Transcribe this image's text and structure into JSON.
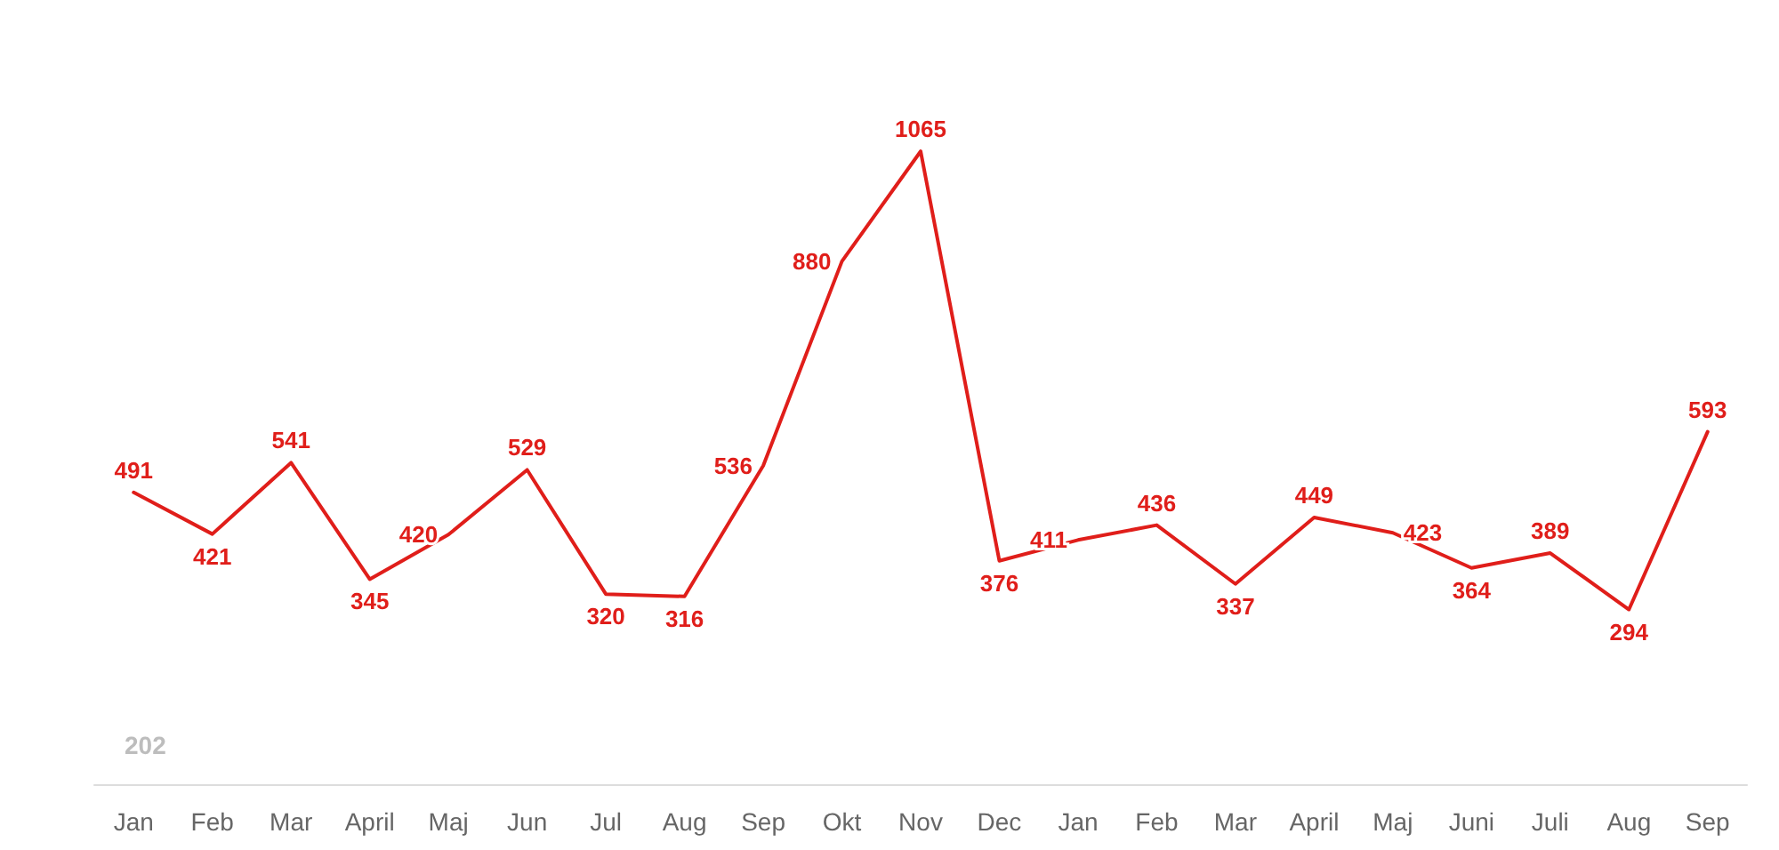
{
  "chart_data": {
    "type": "line",
    "categories": [
      "Jan",
      "Feb",
      "Mar",
      "April",
      "Maj",
      "Jun",
      "Jul",
      "Aug",
      "Sep",
      "Okt",
      "Nov",
      "Dec",
      "Jan",
      "Feb",
      "Mar",
      "April",
      "Maj",
      "Juni",
      "Juli",
      "Aug",
      "Sep"
    ],
    "series": [
      {
        "color": "#e01e1a",
        "values": [
          491,
          421,
          541,
          345,
          420,
          529,
          320,
          316,
          536,
          880,
          1065,
          376,
          411,
          436,
          337,
          449,
          423,
          364,
          389,
          294,
          593
        ]
      }
    ],
    "data_labels": true,
    "marker": "none",
    "line_style": "solid",
    "grid": false,
    "annotations": [
      "202"
    ]
  }
}
